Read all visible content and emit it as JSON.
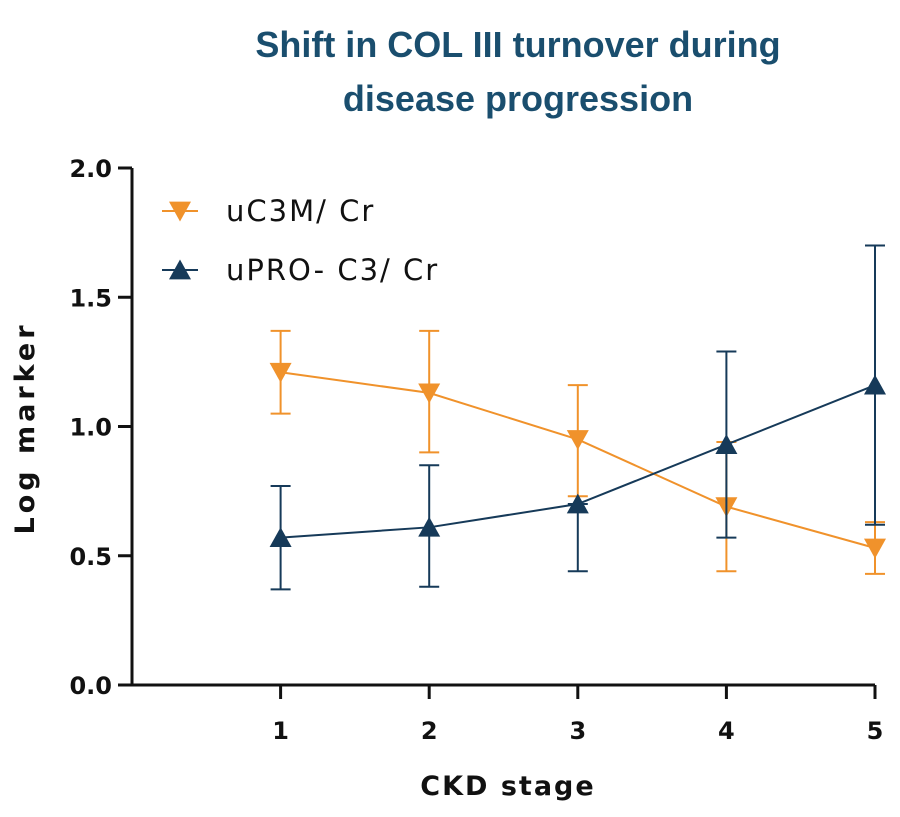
{
  "chart_data": {
    "type": "line",
    "title": "Shift in COL III turnover during disease progression",
    "title_lines": [
      "Shift in COL III turnover during",
      "disease progression"
    ],
    "xlabel": "CKD stage",
    "ylabel": "Log marker",
    "x": [
      1,
      2,
      3,
      4,
      5
    ],
    "x_tick_labels": [
      "1",
      "2",
      "3",
      "4",
      "5"
    ],
    "xlim": [
      0,
      5
    ],
    "ylim": [
      0,
      2
    ],
    "y_ticks": [
      0,
      0.5,
      1.0,
      1.5,
      2.0
    ],
    "y_tick_labels": [
      "0.0",
      "0.5",
      "1.0",
      "1.5",
      "2.0"
    ],
    "grid": false,
    "legend_position": "top-left",
    "series": [
      {
        "name": "uC3M/ Cr",
        "marker": "triangle-down",
        "color": "#f0922b",
        "values": [
          1.21,
          1.13,
          0.95,
          0.69,
          0.53
        ],
        "err_upper": [
          1.37,
          1.37,
          1.16,
          0.94,
          0.63
        ],
        "err_lower": [
          1.05,
          0.9,
          0.73,
          0.44,
          0.43
        ]
      },
      {
        "name": "uPRO- C3/ Cr",
        "marker": "triangle-up",
        "color": "#163a59",
        "values": [
          0.57,
          0.61,
          0.7,
          0.93,
          1.16
        ],
        "err_upper": [
          0.77,
          0.85,
          0.7,
          1.29,
          1.7
        ],
        "err_lower": [
          0.37,
          0.38,
          0.44,
          0.57,
          0.62
        ]
      }
    ]
  }
}
